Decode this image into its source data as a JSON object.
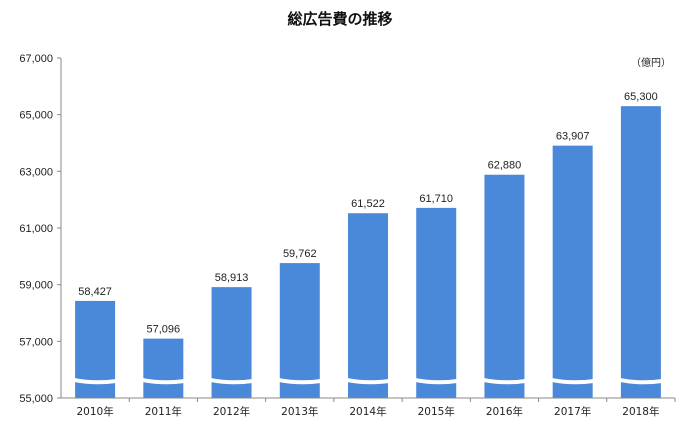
{
  "chart_data": {
    "type": "bar",
    "title": "総広告費の推移",
    "unit": "（億円）",
    "categories": [
      "2010年",
      "2011年",
      "2012年",
      "2013年",
      "2014年",
      "2015年",
      "2016年",
      "2017年",
      "2018年"
    ],
    "values": [
      58427,
      57096,
      58913,
      59762,
      61522,
      61710,
      62880,
      63907,
      65300
    ],
    "value_labels": [
      "58,427",
      "57,096",
      "58,913",
      "59,762",
      "61,522",
      "61,710",
      "62,880",
      "63,907",
      "65,300"
    ],
    "y_ticks": [
      "55,000",
      "57,000",
      "59,000",
      "61,000",
      "63,000",
      "65,000",
      "67,000"
    ],
    "y_tick_values": [
      55000,
      57000,
      59000,
      61000,
      63000,
      65000,
      67000
    ],
    "ylim": [
      55000,
      67000
    ],
    "axis_break": true,
    "grid": false,
    "xlabel": "",
    "ylabel": "",
    "colors": {
      "bar": "#4a89d9",
      "axis": "#888888",
      "break": "#ffffff"
    }
  }
}
